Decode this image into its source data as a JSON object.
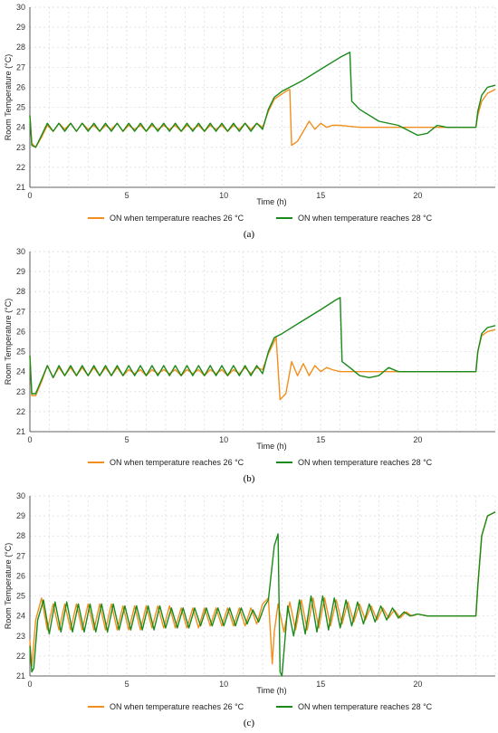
{
  "chart_data": [
    {
      "type": "line",
      "panel_label": "(a)",
      "xlabel": "Time (h)",
      "ylabel": "Room Temperature (°C)",
      "xlim": [
        0,
        24
      ],
      "ylim": [
        21,
        30
      ],
      "xticks": [
        0,
        5,
        10,
        15,
        20
      ],
      "yticks": [
        21,
        22,
        23,
        24,
        25,
        26,
        27,
        28,
        29,
        30
      ],
      "grid": true,
      "legend_position": "bottom-center",
      "series": [
        {
          "name": "ON when temperature reaches 26 °C",
          "color": "#f28e1c",
          "x": [
            0,
            0.1,
            0.3,
            0.6,
            0.9,
            1.2,
            1.5,
            1.8,
            2.1,
            2.4,
            2.7,
            3.0,
            3.3,
            3.6,
            3.9,
            4.2,
            4.5,
            4.8,
            5.1,
            5.4,
            5.7,
            6.0,
            6.3,
            6.6,
            6.9,
            7.2,
            7.5,
            7.8,
            8.1,
            8.4,
            8.7,
            9.0,
            9.3,
            9.6,
            9.9,
            10.2,
            10.5,
            10.8,
            11.1,
            11.4,
            11.7,
            12.0,
            12.3,
            12.6,
            12.9,
            13.2,
            13.4,
            13.5,
            13.8,
            14.1,
            14.4,
            14.7,
            15.0,
            15.3,
            15.6,
            16,
            17,
            18,
            19,
            20,
            21,
            22,
            23.0,
            23.1,
            23.3,
            23.6,
            24
          ],
          "y": [
            24.6,
            23.2,
            23.0,
            23.5,
            24.1,
            23.8,
            24.2,
            23.9,
            24.2,
            23.8,
            24.2,
            23.9,
            24.1,
            23.8,
            24.1,
            23.9,
            24.2,
            23.8,
            24.1,
            23.9,
            24.1,
            23.8,
            24.1,
            23.9,
            24.1,
            23.9,
            24.1,
            23.8,
            24.1,
            23.9,
            24.1,
            23.8,
            24.1,
            23.9,
            24.1,
            23.8,
            24.1,
            23.9,
            24.2,
            23.9,
            24.2,
            24.0,
            24.8,
            25.4,
            25.6,
            25.8,
            25.9,
            23.1,
            23.3,
            23.8,
            24.3,
            23.9,
            24.2,
            24.0,
            24.1,
            24.1,
            24.0,
            24.0,
            24.0,
            24.0,
            24.0,
            24.0,
            24.0,
            24.6,
            25.3,
            25.7,
            25.9
          ]
        },
        {
          "name": "ON when temperature reaches 28 °C",
          "color": "#1a8a1a",
          "x": [
            0,
            0.1,
            0.3,
            0.6,
            0.9,
            1.2,
            1.5,
            1.8,
            2.1,
            2.4,
            2.7,
            3.0,
            3.3,
            3.6,
            3.9,
            4.2,
            4.5,
            4.8,
            5.1,
            5.4,
            5.7,
            6.0,
            6.3,
            6.6,
            6.9,
            7.2,
            7.5,
            7.8,
            8.1,
            8.4,
            8.7,
            9.0,
            9.3,
            9.6,
            9.9,
            10.2,
            10.5,
            10.8,
            11.1,
            11.4,
            11.7,
            12.0,
            12.3,
            12.6,
            13,
            14,
            15,
            16,
            16.5,
            16.6,
            17,
            18,
            19,
            20,
            20.5,
            21,
            21.5,
            22,
            23.0,
            23.1,
            23.3,
            23.6,
            24
          ],
          "y": [
            24.6,
            23.1,
            23.0,
            23.6,
            24.2,
            23.8,
            24.2,
            23.8,
            24.2,
            23.8,
            24.2,
            23.8,
            24.2,
            23.8,
            24.2,
            23.8,
            24.2,
            23.8,
            24.2,
            23.8,
            24.2,
            23.8,
            24.2,
            23.8,
            24.2,
            23.8,
            24.2,
            23.8,
            24.2,
            23.8,
            24.2,
            23.8,
            24.2,
            23.8,
            24.2,
            23.8,
            24.2,
            23.8,
            24.2,
            23.8,
            24.2,
            23.9,
            24.9,
            25.5,
            25.8,
            26.3,
            26.9,
            27.5,
            27.75,
            25.3,
            24.9,
            24.3,
            24.1,
            23.6,
            23.7,
            24.1,
            24.0,
            24.0,
            24.0,
            24.8,
            25.6,
            26.0,
            26.1
          ]
        }
      ]
    },
    {
      "type": "line",
      "panel_label": "(b)",
      "xlabel": "Time (h)",
      "ylabel": "Room Temperature (°C)",
      "xlim": [
        0,
        24
      ],
      "ylim": [
        21,
        30
      ],
      "xticks": [
        0,
        5,
        10,
        15,
        20
      ],
      "yticks": [
        21,
        22,
        23,
        24,
        25,
        26,
        27,
        28,
        29,
        30
      ],
      "grid": true,
      "legend_position": "bottom-center",
      "series": [
        {
          "name": "ON when temperature reaches 26 °C",
          "color": "#f28e1c",
          "x": [
            0,
            0.1,
            0.3,
            0.6,
            0.9,
            1.2,
            1.5,
            1.8,
            2.1,
            2.4,
            2.7,
            3.0,
            3.3,
            3.6,
            3.9,
            4.2,
            4.5,
            4.8,
            5.1,
            5.4,
            5.7,
            6.0,
            6.3,
            6.6,
            6.9,
            7.2,
            7.5,
            7.8,
            8.1,
            8.4,
            8.7,
            9.0,
            9.3,
            9.6,
            9.9,
            10.2,
            10.5,
            10.8,
            11.1,
            11.4,
            11.7,
            12.0,
            12.3,
            12.6,
            12.7,
            12.9,
            13.2,
            13.5,
            13.8,
            14.1,
            14.4,
            14.7,
            15.0,
            15.3,
            15.6,
            16,
            17,
            18,
            19,
            20,
            21,
            22,
            23.0,
            23.1,
            23.3,
            23.6,
            24
          ],
          "y": [
            24.8,
            22.8,
            22.8,
            23.5,
            24.3,
            23.7,
            24.2,
            23.8,
            24.2,
            23.8,
            24.2,
            23.8,
            24.2,
            23.8,
            24.2,
            23.8,
            24.2,
            23.8,
            24.1,
            23.9,
            24.1,
            23.8,
            24.1,
            23.9,
            24.1,
            23.9,
            24.1,
            23.8,
            24.1,
            23.9,
            24.1,
            23.8,
            24.1,
            23.9,
            24.1,
            23.8,
            24.1,
            23.9,
            24.2,
            23.9,
            24.2,
            24.1,
            24.9,
            25.5,
            25.7,
            22.6,
            22.9,
            24.5,
            23.8,
            24.4,
            23.8,
            24.3,
            24.0,
            24.2,
            24.1,
            24.0,
            24.0,
            24.0,
            24.0,
            24.0,
            24.0,
            24.0,
            24.0,
            25.0,
            25.8,
            26.0,
            26.1
          ]
        },
        {
          "name": "ON when temperature reaches 28 °C",
          "color": "#1a8a1a",
          "x": [
            0,
            0.1,
            0.3,
            0.6,
            0.9,
            1.2,
            1.5,
            1.8,
            2.1,
            2.4,
            2.7,
            3.0,
            3.3,
            3.6,
            3.9,
            4.2,
            4.5,
            4.8,
            5.1,
            5.4,
            5.7,
            6.0,
            6.3,
            6.6,
            6.9,
            7.2,
            7.5,
            7.8,
            8.1,
            8.4,
            8.7,
            9.0,
            9.3,
            9.6,
            9.9,
            10.2,
            10.5,
            10.8,
            11.1,
            11.4,
            11.7,
            12.0,
            12.3,
            12.6,
            13,
            14,
            15,
            15.8,
            16.0,
            16.1,
            16.5,
            17.0,
            17.5,
            18.0,
            18.5,
            19,
            20,
            21,
            22,
            23.0,
            23.1,
            23.3,
            23.6,
            24
          ],
          "y": [
            24.8,
            22.9,
            22.9,
            23.6,
            24.3,
            23.7,
            24.3,
            23.8,
            24.3,
            23.8,
            24.3,
            23.8,
            24.3,
            23.8,
            24.3,
            23.8,
            24.3,
            23.8,
            24.3,
            23.8,
            24.3,
            23.8,
            24.3,
            23.8,
            24.3,
            23.8,
            24.3,
            23.8,
            24.3,
            23.8,
            24.3,
            23.8,
            24.3,
            23.8,
            24.3,
            23.8,
            24.3,
            23.8,
            24.3,
            23.8,
            24.3,
            23.9,
            25.0,
            25.7,
            25.9,
            26.5,
            27.1,
            27.6,
            27.7,
            24.5,
            24.2,
            23.8,
            23.7,
            23.8,
            24.2,
            24.0,
            24.0,
            24.0,
            24.0,
            24.0,
            25.0,
            25.9,
            26.2,
            26.3
          ]
        }
      ]
    },
    {
      "type": "line",
      "panel_label": "(c)",
      "xlabel": "Time (h)",
      "ylabel": "Room Temperature (°C)",
      "xlim": [
        0,
        24
      ],
      "ylim": [
        21,
        30
      ],
      "xticks": [
        0,
        5,
        10,
        15,
        20
      ],
      "yticks": [
        21,
        22,
        23,
        24,
        25,
        26,
        27,
        28,
        29,
        30
      ],
      "grid": true,
      "legend_position": "bottom-center",
      "series": [
        {
          "name": "ON when temperature reaches 26 °C",
          "color": "#f28e1c",
          "x": [
            0,
            0.1,
            0.15,
            0.3,
            0.6,
            0.9,
            1.2,
            1.5,
            1.8,
            2.1,
            2.4,
            2.7,
            3.0,
            3.3,
            3.6,
            3.9,
            4.2,
            4.5,
            4.8,
            5.1,
            5.4,
            5.7,
            6.0,
            6.3,
            6.6,
            6.9,
            7.2,
            7.5,
            7.8,
            8.1,
            8.4,
            8.7,
            9.0,
            9.3,
            9.6,
            9.9,
            10.2,
            10.5,
            10.8,
            11.1,
            11.4,
            11.7,
            12.0,
            12.3,
            12.5,
            12.6,
            12.8,
            13.1,
            13.4,
            13.7,
            14.0,
            14.3,
            14.6,
            14.9,
            15.2,
            15.5,
            15.8,
            16.1,
            16.4,
            16.7,
            17.0,
            17.3,
            17.6,
            17.9,
            18.2,
            18.5,
            18.8,
            19.1,
            19.4,
            19.7,
            20.0,
            20.5,
            21,
            22,
            23.0,
            23.1,
            23.3,
            23.6,
            24
          ],
          "y": [
            22.8,
            21.5,
            22.0,
            23.8,
            24.9,
            23.3,
            24.6,
            23.3,
            24.6,
            23.3,
            24.6,
            23.3,
            24.6,
            23.3,
            24.6,
            23.3,
            24.6,
            23.3,
            24.5,
            23.3,
            24.5,
            23.3,
            24.5,
            23.4,
            24.5,
            23.4,
            24.5,
            23.4,
            24.4,
            23.4,
            24.4,
            23.4,
            24.4,
            23.5,
            24.4,
            23.5,
            24.4,
            23.5,
            24.4,
            23.5,
            24.4,
            23.6,
            24.6,
            24.9,
            21.6,
            23.2,
            24.6,
            23.2,
            24.7,
            23.3,
            24.8,
            23.3,
            24.9,
            23.4,
            24.9,
            23.5,
            24.8,
            23.6,
            24.7,
            23.7,
            24.6,
            23.8,
            24.5,
            23.8,
            24.4,
            23.9,
            24.3,
            23.9,
            24.2,
            24.0,
            24.1,
            24.0,
            24.0,
            24.0,
            24.0,
            25.5,
            28.0,
            29.0,
            29.2
          ]
        },
        {
          "name": "ON when temperature reaches 28 °C",
          "color": "#1a8a1a",
          "x": [
            0,
            0.1,
            0.2,
            0.4,
            0.7,
            1.0,
            1.3,
            1.6,
            1.9,
            2.2,
            2.5,
            2.8,
            3.1,
            3.4,
            3.7,
            4.0,
            4.3,
            4.6,
            4.9,
            5.2,
            5.5,
            5.8,
            6.1,
            6.4,
            6.7,
            7.0,
            7.3,
            7.6,
            7.9,
            8.2,
            8.5,
            8.8,
            9.1,
            9.4,
            9.7,
            10.0,
            10.3,
            10.6,
            10.9,
            11.2,
            11.5,
            11.8,
            12.1,
            12.3,
            12.6,
            12.8,
            12.9,
            13.0,
            13.3,
            13.6,
            13.9,
            14.2,
            14.5,
            14.8,
            15.1,
            15.4,
            15.7,
            16.0,
            16.3,
            16.6,
            16.9,
            17.2,
            17.5,
            17.8,
            18.1,
            18.4,
            18.7,
            19.0,
            19.3,
            19.6,
            20.0,
            20.5,
            21,
            22,
            23.0,
            23.1,
            23.3,
            23.6,
            24
          ],
          "y": [
            22.5,
            21.2,
            21.4,
            23.8,
            24.8,
            23.1,
            24.7,
            23.2,
            24.7,
            23.2,
            24.6,
            23.2,
            24.6,
            23.2,
            24.6,
            23.2,
            24.6,
            23.3,
            24.5,
            23.3,
            24.5,
            23.3,
            24.5,
            23.3,
            24.5,
            23.4,
            24.4,
            23.4,
            24.4,
            23.4,
            24.4,
            23.5,
            24.4,
            23.5,
            24.4,
            23.5,
            24.4,
            23.5,
            24.4,
            23.6,
            24.3,
            23.7,
            24.5,
            24.8,
            27.5,
            28.1,
            21.2,
            21.0,
            24.5,
            23.0,
            24.8,
            23.1,
            25.0,
            23.2,
            25.0,
            23.3,
            24.9,
            23.4,
            24.8,
            23.5,
            24.7,
            23.6,
            24.6,
            23.7,
            24.5,
            23.8,
            24.4,
            23.9,
            24.2,
            24.0,
            24.1,
            24.0,
            24.0,
            24.0,
            24.0,
            25.5,
            28.0,
            29.0,
            29.2
          ]
        }
      ]
    }
  ]
}
